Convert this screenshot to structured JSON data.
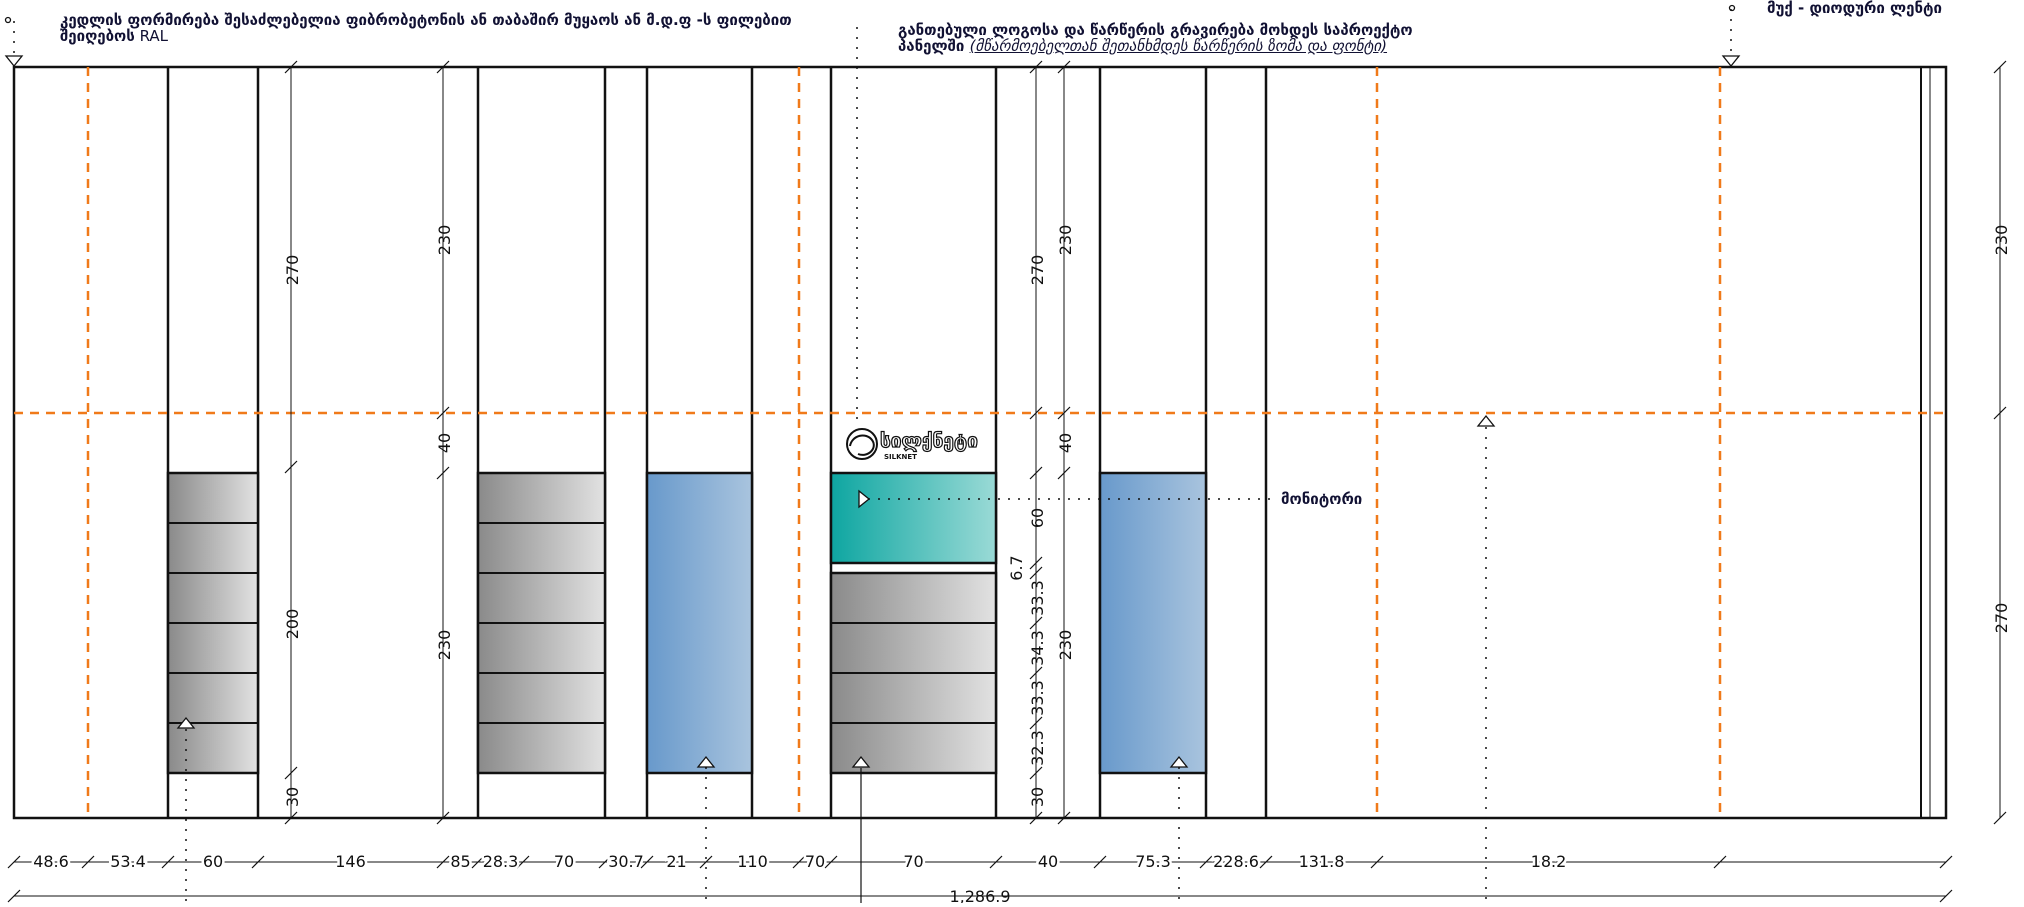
{
  "callouts": {
    "wall": {
      "line1": "კედლის ფორმირება შესაძლებელია  ფიბრობეტონის  ან თაბაშირ მუყაოს  ან მ.დ.ფ -ს ფილებით",
      "line2_bold": "შეიღებოს",
      "line2_rest": " RAL"
    },
    "logo_panel": {
      "line1": "განთებული ლოგოსა და წარწერის გრავირება მოხდეს საპროექტო",
      "line2_bold": "პანელში",
      "line2_italic": "(მწარმოებელთან შეთანხმდეს წარწერის ზომა და ფონტი)"
    },
    "led": {
      "text": "მუქ - დიოდური ლენტი"
    },
    "monitor": {
      "text": "მონიტორი"
    }
  },
  "logo": {
    "name": "სილქნეტი",
    "sub": "SILKNET"
  },
  "dims": {
    "vertical_left": [
      "270",
      "200",
      "30"
    ],
    "vertical_col2": [
      "230",
      "40",
      "230"
    ],
    "vertical_mid": [
      "270",
      "40",
      "60",
      "6.7",
      "33.3",
      "34.3",
      "33.3",
      "32.3",
      "30",
      "230",
      "230"
    ],
    "right_edge": [
      "230",
      "270"
    ],
    "bottom_segments": [
      "48.6",
      "53.4",
      "60",
      "146",
      "85",
      "28.3",
      "70",
      "30.7",
      "21",
      "110",
      "70",
      "70",
      "40",
      "75.3",
      "228.6",
      "131.8",
      "18.2"
    ],
    "total": "1,286.9"
  },
  "colors": {
    "accent_orange": "#f07a1a",
    "teal": "#14aaa5",
    "blue": "#6e9ece",
    "grey": "#999999",
    "ink": "#111133"
  }
}
